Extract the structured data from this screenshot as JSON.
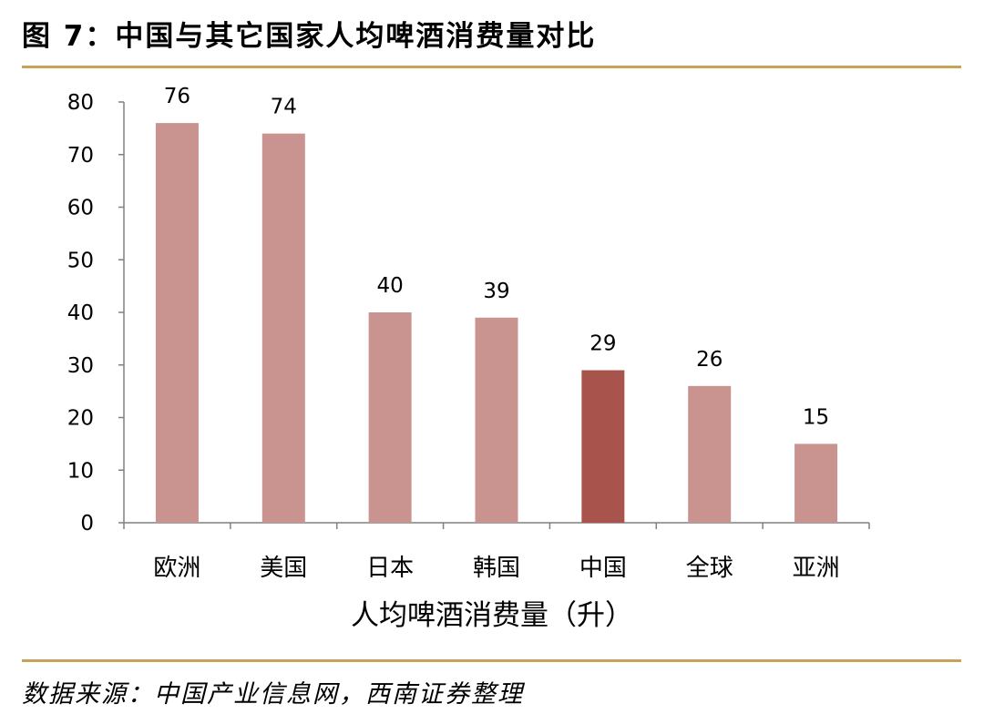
{
  "figure": {
    "title": "图 7：中国与其它国家人均啤酒消费量对比",
    "source": "数据来源：中国产业信息网，西南证券整理"
  },
  "colors": {
    "bar": "#c99390",
    "bar_highlight": "#a8544d",
    "rule": "#c9a25a",
    "axis": "#808080"
  },
  "chart_data": {
    "type": "bar",
    "title": "",
    "xlabel": "人均啤酒消费量（升）",
    "ylabel": "",
    "categories": [
      "欧洲",
      "美国",
      "日本",
      "韩国",
      "中国",
      "全球",
      "亚洲"
    ],
    "values": [
      76,
      74,
      40,
      39,
      29,
      26,
      15
    ],
    "data_labels": [
      "76",
      "74",
      "40",
      "39",
      "29",
      "26",
      "15"
    ],
    "highlight": "中国",
    "ylim": [
      0,
      80
    ],
    "yticks": [
      0,
      10,
      20,
      30,
      40,
      50,
      60,
      70,
      80
    ],
    "ytick_labels": [
      "0",
      "10",
      "20",
      "30",
      "40",
      "50",
      "60",
      "70",
      "80"
    ],
    "grid": false,
    "legend": "none"
  }
}
